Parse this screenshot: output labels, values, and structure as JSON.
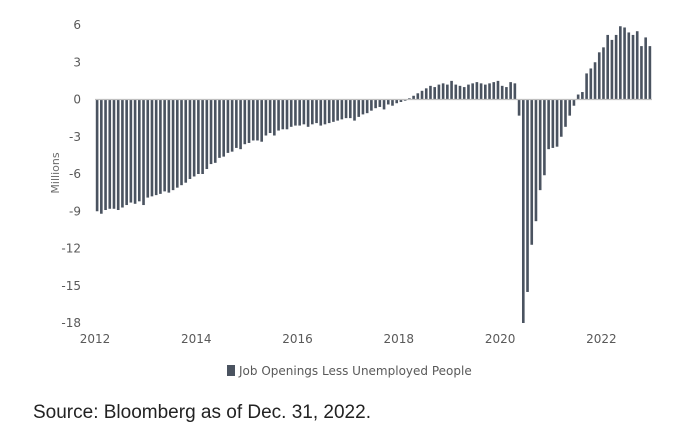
{
  "chart_data": {
    "type": "bar",
    "title": "",
    "xlabel": "",
    "ylabel": "Millions",
    "ylim": [
      -18,
      6
    ],
    "yticks": [
      6,
      3,
      0,
      -3,
      -6,
      -9,
      -12,
      -15,
      -18
    ],
    "xticks": [
      "2012",
      "2014",
      "2016",
      "2018",
      "2020",
      "2022"
    ],
    "x_start": 2012.0,
    "x_end": 2023.0,
    "bar_color": "#4a5360",
    "zero_line_color": "#bfbfbf",
    "legend": "Job Openings Less Unemployed People",
    "legend_position": "bottom-center",
    "series": [
      {
        "name": "Job Openings Less Unemployed People",
        "values": [
          -9.0,
          -9.2,
          -8.9,
          -8.8,
          -8.8,
          -8.9,
          -8.7,
          -8.5,
          -8.3,
          -8.4,
          -8.2,
          -8.5,
          -7.9,
          -7.8,
          -7.7,
          -7.6,
          -7.4,
          -7.5,
          -7.3,
          -7.1,
          -6.9,
          -6.7,
          -6.4,
          -6.2,
          -6.0,
          -6.0,
          -5.6,
          -5.2,
          -5.1,
          -4.7,
          -4.6,
          -4.3,
          -4.2,
          -3.9,
          -4.0,
          -3.6,
          -3.5,
          -3.3,
          -3.3,
          -3.4,
          -2.9,
          -2.7,
          -2.9,
          -2.5,
          -2.4,
          -2.4,
          -2.2,
          -2.1,
          -2.1,
          -2.0,
          -2.2,
          -2.0,
          -1.9,
          -2.1,
          -2.0,
          -1.9,
          -1.8,
          -1.7,
          -1.6,
          -1.5,
          -1.5,
          -1.7,
          -1.4,
          -1.2,
          -1.1,
          -0.9,
          -0.7,
          -0.6,
          -0.8,
          -0.4,
          -0.5,
          -0.3,
          -0.2,
          -0.1,
          0.1,
          0.3,
          0.5,
          0.7,
          0.9,
          1.1,
          1.0,
          1.2,
          1.3,
          1.2,
          1.5,
          1.2,
          1.1,
          1.0,
          1.2,
          1.3,
          1.4,
          1.3,
          1.2,
          1.3,
          1.4,
          1.5,
          1.1,
          1.0,
          1.4,
          1.3,
          -1.3,
          -18.0,
          -15.5,
          -11.7,
          -9.8,
          -7.3,
          -6.1,
          -4.0,
          -3.9,
          -3.8,
          -3.0,
          -2.2,
          -1.3,
          -0.5,
          0.4,
          0.6,
          2.1,
          2.5,
          3.0,
          3.8,
          4.2,
          5.2,
          4.8,
          5.2,
          5.9,
          5.8,
          5.4,
          5.2,
          5.5,
          4.3,
          5.0,
          4.3
        ]
      }
    ]
  },
  "footer": {
    "source": "Source: Bloomberg as of Dec. 31, 2022."
  }
}
